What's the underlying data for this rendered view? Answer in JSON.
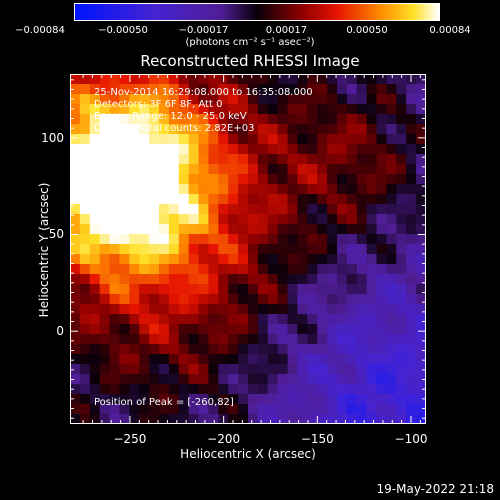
{
  "chart_data": {
    "type": "heatmap",
    "title": "Reconstructed RHESSI Image",
    "xlabel": "Heliocentric X (arcsec)",
    "ylabel": "Heliocentric Y (arcsec)",
    "xlim": [
      -282,
      -92
    ],
    "ylim": [
      -48,
      133
    ],
    "x_ticks": [
      -250,
      -200,
      -150,
      -100
    ],
    "y_ticks": [
      0,
      50,
      100
    ],
    "colorbar": {
      "min": -0.00084,
      "max": 0.00084,
      "tick_values": [
        -0.00084,
        -0.0005,
        -0.00017,
        0.00017,
        0.0005,
        0.00084
      ],
      "tick_labels": [
        "-0.00084",
        "-0.00050",
        "-0.00017",
        "0.00017",
        "0.00050",
        "0.00084"
      ],
      "unit_label": "(photons cm⁻² s⁻¹ asec⁻²)"
    },
    "annotations": {
      "time_range": "25-Nov-2014 16:29:08.000 to 16:35:08.000",
      "detectors": "Detectors: 3F 6F 8F, Att 0",
      "energy_range": "Energy Range: 12.0 - 25.0 keV",
      "algorithm_counts": "Clean     Total counts: 2.82E+03",
      "peak": "Position of Peak = [-260,82]"
    },
    "peak_position": [
      -260,
      82
    ],
    "grid": false
  },
  "footer": {
    "timestamp": "19-May-2022 21:18"
  }
}
